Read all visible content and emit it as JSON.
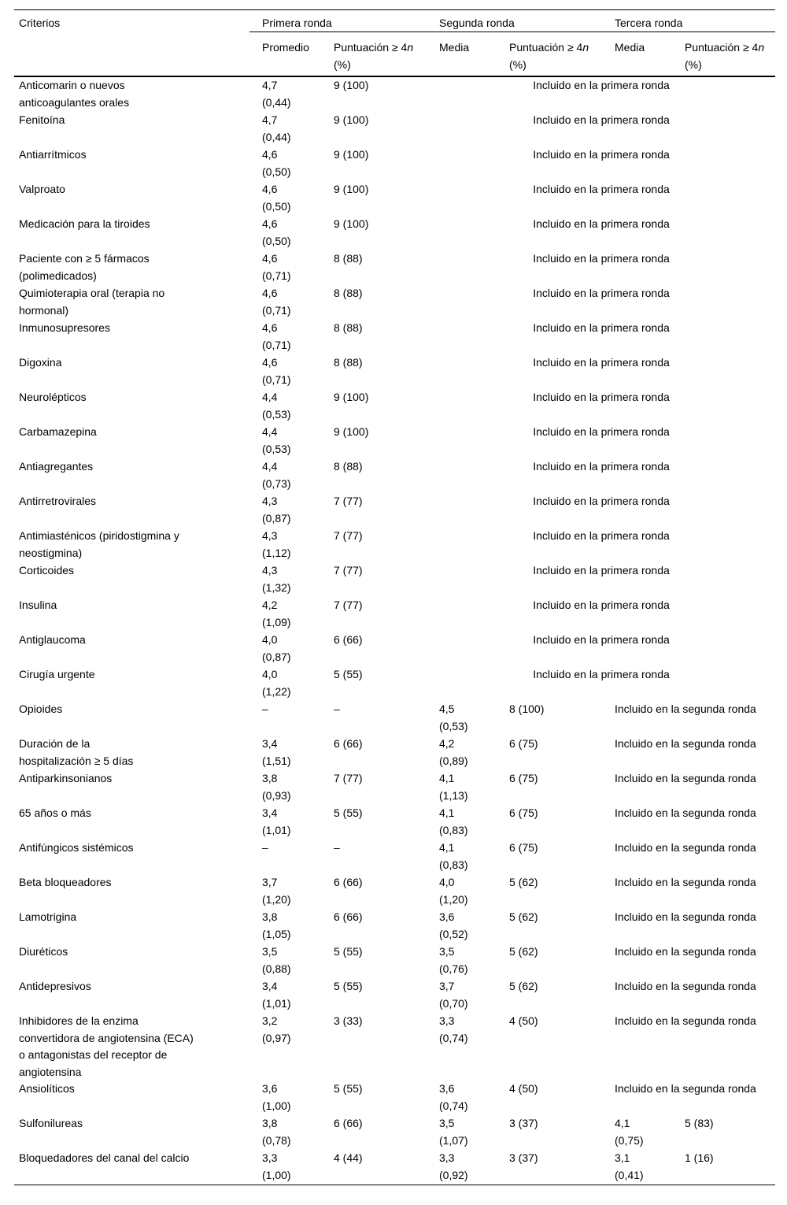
{
  "table": {
    "header": {
      "criterios": "Criterios",
      "groups": [
        "Primera ronda",
        "Segunda ronda",
        "Tercera ronda"
      ],
      "sub": {
        "promedio": "Promedio",
        "media": "Media",
        "puntuacion_prefix": "Puntuación ≥ 4",
        "puntuacion_var": "n",
        "puntuacion_unit": "(%)"
      }
    },
    "span_labels": {
      "primera": "Incluido en la primera ronda",
      "segunda": "Incluido en la segunda ronda"
    },
    "rows": [
      {
        "criterio": "Anticomarin o nuevos\nanticoagulantes orales",
        "promedio": "4,7",
        "promedio_sd": "(0,44)",
        "punt1": "9 (100)",
        "span": "primera"
      },
      {
        "criterio": "Fenitoína",
        "promedio": "4,7",
        "promedio_sd": "(0,44)",
        "punt1": "9 (100)",
        "span": "primera"
      },
      {
        "criterio": "Antiarrítmicos",
        "promedio": "4,6",
        "promedio_sd": "(0,50)",
        "punt1": "9 (100)",
        "span": "primera"
      },
      {
        "criterio": "Valproato",
        "promedio": "4,6",
        "promedio_sd": "(0,50)",
        "punt1": "9 (100)",
        "span": "primera"
      },
      {
        "criterio": "Medicación para la tiroides",
        "promedio": "4,6",
        "promedio_sd": "(0,50)",
        "punt1": "9 (100)",
        "span": "primera"
      },
      {
        "criterio": "Paciente con ≥ 5 fármacos\n(polimedicados)",
        "promedio": "4,6",
        "promedio_sd": "(0,71)",
        "punt1": "8 (88)",
        "span": "primera"
      },
      {
        "criterio": "Quimioterapia oral (terapia no\nhormonal)",
        "promedio": "4,6",
        "promedio_sd": "(0,71)",
        "punt1": "8 (88)",
        "span": "primera"
      },
      {
        "criterio": "Inmunosupresores",
        "promedio": "4,6",
        "promedio_sd": "(0,71)",
        "punt1": "8 (88)",
        "span": "primera"
      },
      {
        "criterio": "Digoxina",
        "promedio": "4,6",
        "promedio_sd": "(0,71)",
        "punt1": "8 (88)",
        "span": "primera"
      },
      {
        "criterio": "Neurolépticos",
        "promedio": "4,4",
        "promedio_sd": "(0,53)",
        "punt1": "9 (100)",
        "span": "primera"
      },
      {
        "criterio": "Carbamazepina",
        "promedio": "4,4",
        "promedio_sd": "(0,53)",
        "punt1": "9 (100)",
        "span": "primera"
      },
      {
        "criterio": "Antiagregantes",
        "promedio": "4,4",
        "promedio_sd": "(0,73)",
        "punt1": "8 (88)",
        "span": "primera"
      },
      {
        "criterio": "Antirretrovirales",
        "promedio": "4,3",
        "promedio_sd": "(0,87)",
        "punt1": "7 (77)",
        "span": "primera"
      },
      {
        "criterio": "Antimiasténicos (piridostigmina y\nneostigmina)",
        "promedio": "4,3",
        "promedio_sd": "(1,12)",
        "punt1": "7 (77)",
        "span": "primera"
      },
      {
        "criterio": "Corticoides",
        "promedio": "4,3",
        "promedio_sd": "(1,32)",
        "punt1": "7 (77)",
        "span": "primera"
      },
      {
        "criterio": "Insulina",
        "promedio": "4,2",
        "promedio_sd": "(1,09)",
        "punt1": "7 (77)",
        "span": "primera"
      },
      {
        "criterio": "Antiglaucoma",
        "promedio": "4,0",
        "promedio_sd": "(0,87)",
        "punt1": "6 (66)",
        "span": "primera"
      },
      {
        "criterio": "Cirugía urgente",
        "promedio": "4,0",
        "promedio_sd": "(1,22)",
        "punt1": "5 (55)",
        "span": "primera"
      },
      {
        "criterio": "Opioides",
        "promedio": "–",
        "punt1": "–",
        "media2": "4,5",
        "media2_sd": "(0,53)",
        "punt2": "8 (100)",
        "span": "segunda"
      },
      {
        "criterio": "Duración de la\nhospitalización ≥ 5 días",
        "promedio": "3,4",
        "promedio_sd": "(1,51)",
        "punt1": "6 (66)",
        "media2": "4,2",
        "media2_sd": "(0,89)",
        "punt2": "6 (75)",
        "span": "segunda"
      },
      {
        "criterio": "Antiparkinsonianos",
        "promedio": "3,8",
        "promedio_sd": "(0,93)",
        "punt1": "7 (77)",
        "media2": "4,1",
        "media2_sd": "(1,13)",
        "punt2": "6 (75)",
        "span": "segunda"
      },
      {
        "criterio": "65 años o más",
        "promedio": "3,4",
        "promedio_sd": "(1,01)",
        "punt1": "5 (55)",
        "media2": "4,1",
        "media2_sd": "(0,83)",
        "punt2": "6 (75)",
        "span": "segunda"
      },
      {
        "criterio": "Antifúngicos sistémicos",
        "promedio": "–",
        "punt1": "–",
        "media2": "4,1",
        "media2_sd": "(0,83)",
        "punt2": "6 (75)",
        "span": "segunda"
      },
      {
        "criterio": "Beta bloqueadores",
        "promedio": "3,7",
        "promedio_sd": "(1,20)",
        "punt1": "6 (66)",
        "media2": "4,0",
        "media2_sd": "(1,20)",
        "punt2": "5 (62)",
        "span": "segunda"
      },
      {
        "criterio": "Lamotrigina",
        "promedio": "3,8",
        "promedio_sd": "(1,05)",
        "punt1": "6 (66)",
        "media2": "3,6",
        "media2_sd": "(0,52)",
        "punt2": "5 (62)",
        "span": "segunda"
      },
      {
        "criterio": "Diuréticos",
        "promedio": "3,5",
        "promedio_sd": "(0,88)",
        "punt1": "5 (55)",
        "media2": "3,5",
        "media2_sd": "(0,76)",
        "punt2": "5 (62)",
        "span": "segunda"
      },
      {
        "criterio": "Antidepresivos",
        "promedio": "3,4",
        "promedio_sd": "(1,01)",
        "punt1": "5 (55)",
        "media2": "3,7",
        "media2_sd": "(0,70)",
        "punt2": "5 (62)",
        "span": "segunda"
      },
      {
        "criterio": "Inhibidores de la enzima\nconvertidora de angiotensina (ECA)\no antagonistas del receptor de\nangiotensina",
        "promedio": "3,2",
        "promedio_sd": "(0,97)",
        "punt1": "3 (33)",
        "media2": "3,3",
        "media2_sd": "(0,74)",
        "punt2": "4 (50)",
        "span": "segunda"
      },
      {
        "criterio": "Ansiolíticos",
        "promedio": "3,6",
        "promedio_sd": "(1,00)",
        "punt1": "5 (55)",
        "media2": "3,6",
        "media2_sd": "(0,74)",
        "punt2": "4 (50)",
        "span": "segunda"
      },
      {
        "criterio": "Sulfonilureas",
        "promedio": "3,8",
        "promedio_sd": "(0,78)",
        "punt1": "6 (66)",
        "media2": "3,5",
        "media2_sd": "(1,07)",
        "punt2": "3 (37)",
        "media3": "4,1",
        "media3_sd": "(0,75)",
        "punt3": "5 (83)"
      },
      {
        "criterio": "Bloquedadores del canal del calcio",
        "promedio": "3,3",
        "promedio_sd": "(1,00)",
        "punt1": "4 (44)",
        "media2": "3,3",
        "media2_sd": "(0,92)",
        "punt2": "3 (37)",
        "media3": "3,1",
        "media3_sd": "(0,41)",
        "punt3": "1 (16)"
      }
    ]
  }
}
